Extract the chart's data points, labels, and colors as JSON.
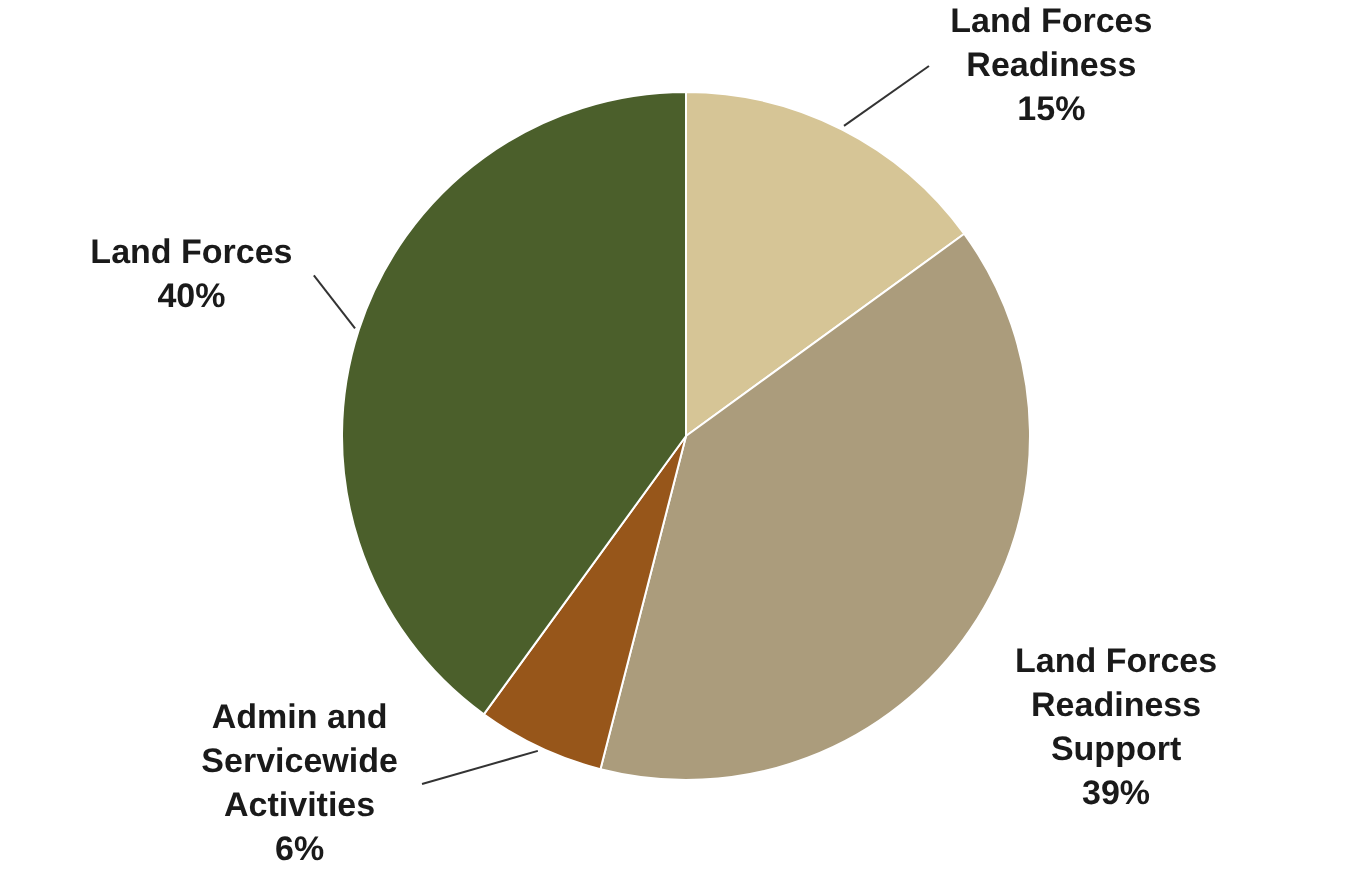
{
  "chart_data": {
    "type": "pie",
    "categories": [
      "Land Forces Readiness",
      "Land Forces Readiness Support",
      "Admin and Servicewide Activities",
      "Land Forces"
    ],
    "values": [
      15,
      39,
      6,
      40
    ],
    "value_labels": [
      "15%",
      "39%",
      "6%",
      "40%"
    ],
    "colors": [
      "#d6c596",
      "#ab9c7c",
      "#97561a",
      "#4b5f2b"
    ]
  }
}
